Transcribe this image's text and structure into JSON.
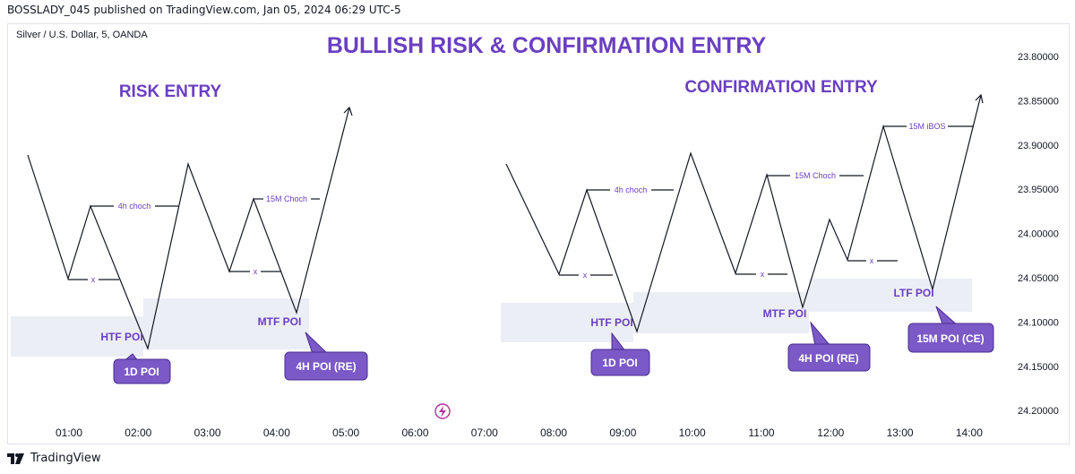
{
  "header": {
    "published_line": "BOSSLADY_045 published on TradingView.com, Jan 05, 2024 06:29 UTC-5"
  },
  "chart": {
    "symbol_line": "Silver / U.S. Dollar, 5, OANDA",
    "main_title": "BULLISH RISK & CONFIRMATION ENTRY",
    "left_title": "RISK ENTRY",
    "right_title": "CONFIRMATION ENTRY",
    "accent_color": "#6a3fc1",
    "callout_color": "#7b59c6",
    "zone_color": "#eceef5"
  },
  "labels": {
    "choch_4h_left": "4h choch",
    "choch_15m_left": "15M Choch",
    "choch_4h_right": "4h choch",
    "choch_15m_right": "15M Choch",
    "ibos_15m": "15M iBOS",
    "x_mark": "x",
    "htf_poi_left": "HTF POI",
    "mtf_poi_left": "MTF POI",
    "htf_poi_right": "HTF POI",
    "mtf_poi_right": "MTF POI",
    "ltf_poi": "LTF POI"
  },
  "callouts": {
    "d1_left": "1D POI",
    "h4_re_left": "4H POI (RE)",
    "d1_right": "1D POI",
    "h4_re_right": "4H POI (RE)",
    "m15_ce": "15M POI (CE)"
  },
  "price_axis": [
    "23.80000",
    "23.85000",
    "23.90000",
    "23.95000",
    "24.00000",
    "24.05000",
    "24.10000",
    "24.15000",
    "24.20000"
  ],
  "time_axis": [
    "01:00",
    "02:00",
    "03:00",
    "04:00",
    "05:00",
    "06:00",
    "07:00",
    "08:00",
    "09:00",
    "10:00",
    "11:00",
    "12:00",
    "13:00",
    "14:00"
  ],
  "footer": {
    "brand": "TradingView"
  }
}
